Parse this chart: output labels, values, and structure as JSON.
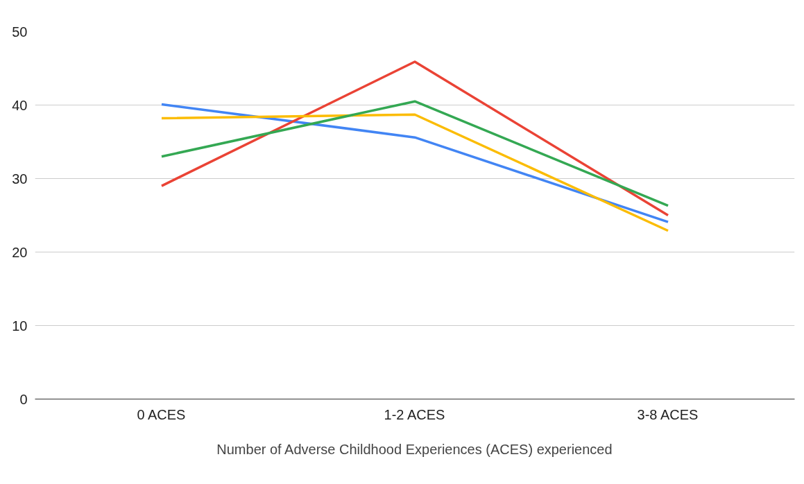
{
  "chart_data": {
    "type": "line",
    "xlabel": "Number of Adverse Childhood Experiences (ACES) experienced",
    "categories": [
      "0 ACES",
      "1-2 ACES",
      "3-8 ACES"
    ],
    "series": [
      {
        "color": "#4285f4",
        "values": [
          40.1,
          35.6,
          24.1
        ]
      },
      {
        "color": "#ea4335",
        "values": [
          29.0,
          45.9,
          25.0
        ]
      },
      {
        "color": "#fbbc04",
        "values": [
          38.2,
          38.7,
          22.9
        ]
      },
      {
        "color": "#34a853",
        "values": [
          33.0,
          40.5,
          26.3
        ]
      }
    ],
    "ylim": [
      0,
      50
    ],
    "yticks": [
      0,
      10,
      20,
      30,
      40,
      50
    ],
    "grid": "y",
    "marker": "none",
    "line_style": "solid"
  }
}
